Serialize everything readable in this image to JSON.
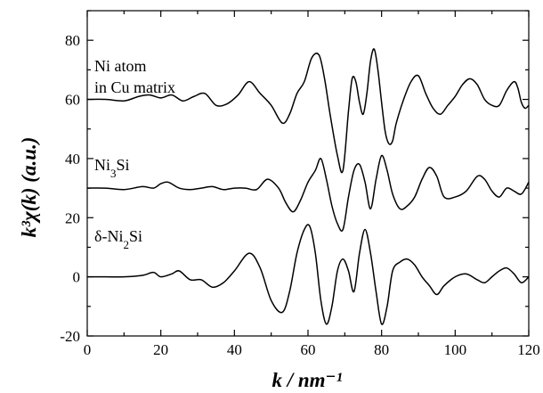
{
  "chart_data": {
    "type": "line",
    "title": "",
    "xlabel": "k / nm⁻¹",
    "ylabel": "k³χ(k) (a.u.)",
    "xlim": [
      0,
      120
    ],
    "ylim": [
      -20,
      90
    ],
    "xticks": [
      0,
      20,
      40,
      60,
      80,
      100,
      120
    ],
    "yticks": [
      -20,
      0,
      20,
      40,
      60,
      80
    ],
    "grid": false,
    "legend": "none",
    "series": [
      {
        "name": "Ni atom in Cu matrix",
        "label_lines": [
          "Ni atom",
          "in Cu matrix"
        ],
        "x": [
          0,
          5,
          10,
          14,
          17,
          20,
          23,
          26,
          29,
          32,
          35,
          38,
          41,
          44,
          47,
          50,
          53,
          55,
          57,
          59,
          61,
          63,
          64.5,
          66,
          68,
          69.5,
          71,
          72,
          73,
          74,
          75,
          76,
          77,
          78,
          79,
          80,
          81,
          82,
          83,
          84,
          86,
          88,
          90,
          92,
          94,
          96,
          98,
          100,
          102,
          104,
          106,
          108,
          110,
          112,
          114,
          116,
          117,
          118,
          119,
          120
        ],
        "y": [
          60,
          60,
          59.5,
          61,
          61.5,
          60.5,
          61.5,
          59.5,
          61,
          62,
          58,
          58.5,
          61.5,
          66,
          62,
          58,
          52,
          55,
          62,
          66,
          74,
          75,
          67,
          55,
          41,
          36,
          56,
          67,
          66,
          59,
          55,
          62,
          73,
          77,
          70,
          59,
          49,
          45,
          46,
          52,
          60,
          66,
          68,
          62,
          57,
          55,
          58,
          61,
          65,
          67,
          65,
          60,
          58,
          58,
          63,
          66,
          64,
          59,
          57,
          58
        ]
      },
      {
        "name": "Ni3Si",
        "label_main": "Ni",
        "label_sub": "3",
        "label_rest": "Si",
        "x": [
          0,
          5,
          10,
          15,
          18,
          20,
          22,
          25,
          28,
          31,
          34,
          37,
          40,
          43,
          46,
          49,
          52,
          54,
          56,
          58,
          60,
          62,
          63.5,
          65,
          66.5,
          68,
          69.5,
          71,
          72.5,
          74,
          75.5,
          77,
          78.5,
          80,
          81.5,
          83,
          85,
          87,
          89,
          91,
          93,
          95,
          97,
          100,
          103,
          106,
          108,
          110,
          112,
          114,
          116,
          118,
          120
        ],
        "y": [
          30,
          30,
          29.5,
          30.5,
          30,
          31.5,
          32,
          30,
          29.5,
          30,
          30.5,
          29.5,
          30,
          30,
          29.5,
          33,
          30,
          25,
          22,
          26,
          32,
          36,
          40,
          33,
          24,
          18,
          16,
          27,
          36,
          38,
          32,
          23,
          33,
          41,
          36,
          28,
          23,
          24,
          27,
          33,
          37,
          34,
          27,
          27,
          29,
          34,
          33,
          29,
          27,
          30,
          29,
          28,
          32
        ]
      },
      {
        "name": "δ-Ni2Si",
        "label_main": "δ-Ni",
        "label_sub": "2",
        "label_rest": "Si",
        "x": [
          0,
          5,
          10,
          15,
          18,
          20,
          23,
          25,
          28,
          31,
          34,
          37,
          40,
          44,
          47,
          50,
          53,
          55,
          57,
          59,
          60.5,
          62,
          63.5,
          65,
          66.5,
          68,
          69.5,
          71,
          72.5,
          74,
          75.5,
          77,
          78.5,
          80,
          81.5,
          83,
          85,
          87,
          89,
          91,
          93,
          95,
          97,
          100,
          103,
          106,
          108,
          110,
          112,
          114,
          116,
          118,
          120
        ],
        "y": [
          0,
          0,
          0,
          0.5,
          1.5,
          0,
          1,
          2,
          -1,
          -1,
          -3.5,
          -2,
          2,
          8,
          3,
          -8,
          -12,
          -5,
          8,
          16,
          17,
          8,
          -8,
          -16,
          -10,
          2,
          6,
          2,
          -5,
          8,
          16,
          8,
          -5,
          -16,
          -10,
          2,
          5,
          6,
          4,
          0,
          -3,
          -6,
          -3,
          0,
          1,
          -1,
          -2,
          0,
          2,
          3,
          1,
          -2,
          0
        ]
      }
    ]
  }
}
